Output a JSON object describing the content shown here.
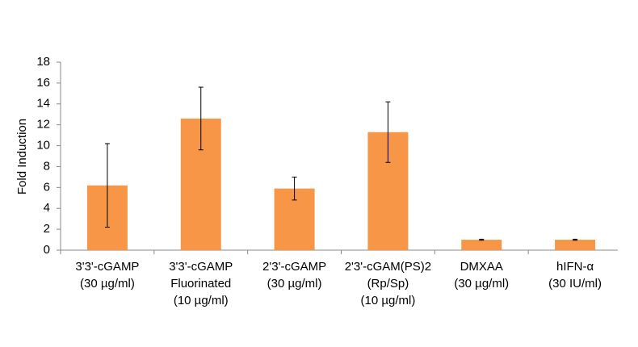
{
  "chart_data": {
    "type": "bar",
    "y_label": "Fold Induction",
    "categories": [
      [
        "3'3'-cGAMP",
        "(30 µg/ml)"
      ],
      [
        "3'3'-cGAMP",
        "Fluorinated",
        "(10 µg/ml)"
      ],
      [
        "2'3'-cGAMP",
        "(30 µg/ml)"
      ],
      [
        "2'3'-cGAM(PS)2",
        "(Rp/Sp)",
        "(10 µg/ml)"
      ],
      [
        "DMXAA",
        "(30 µg/ml)"
      ],
      [
        "hIFN-α",
        "(30 IU/ml)"
      ]
    ],
    "values": [
      6.2,
      12.6,
      5.9,
      11.3,
      1.0,
      1.0
    ],
    "errors": [
      4.0,
      3.0,
      1.1,
      2.9,
      0.05,
      0.05
    ],
    "color": "#f79646",
    "ylim": [
      0,
      18
    ],
    "yticks": [
      0,
      2,
      4,
      6,
      8,
      10,
      12,
      14,
      16,
      18
    ],
    "grid": false
  }
}
